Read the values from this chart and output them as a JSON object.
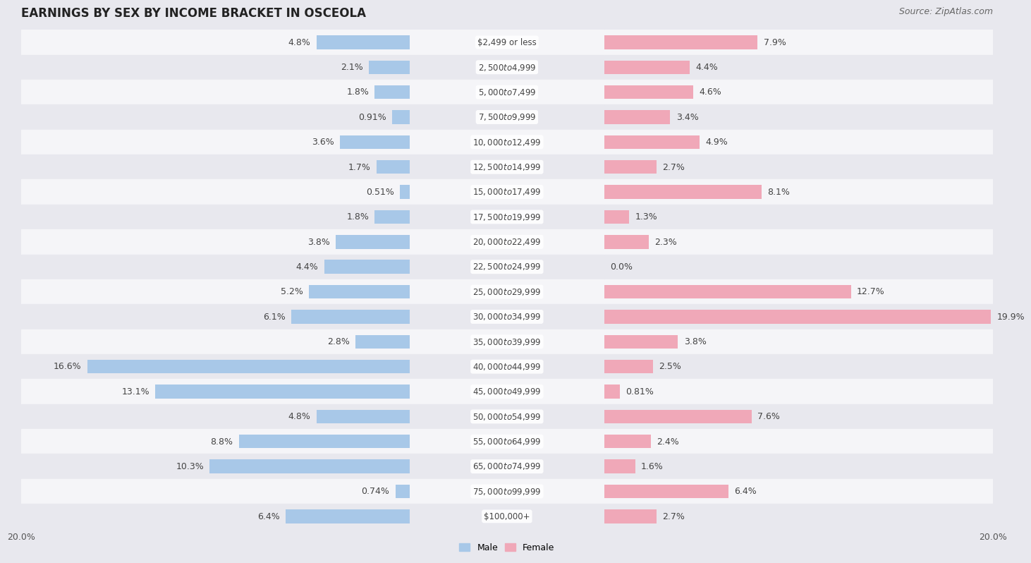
{
  "title": "EARNINGS BY SEX BY INCOME BRACKET IN OSCEOLA",
  "source": "Source: ZipAtlas.com",
  "categories": [
    "$2,499 or less",
    "$2,500 to $4,999",
    "$5,000 to $7,499",
    "$7,500 to $9,999",
    "$10,000 to $12,499",
    "$12,500 to $14,999",
    "$15,000 to $17,499",
    "$17,500 to $19,999",
    "$20,000 to $22,499",
    "$22,500 to $24,999",
    "$25,000 to $29,999",
    "$30,000 to $34,999",
    "$35,000 to $39,999",
    "$40,000 to $44,999",
    "$45,000 to $49,999",
    "$50,000 to $54,999",
    "$55,000 to $64,999",
    "$65,000 to $74,999",
    "$75,000 to $99,999",
    "$100,000+"
  ],
  "male_values": [
    4.8,
    2.1,
    1.8,
    0.91,
    3.6,
    1.7,
    0.51,
    1.8,
    3.8,
    4.4,
    5.2,
    6.1,
    2.8,
    16.6,
    13.1,
    4.8,
    8.8,
    10.3,
    0.74,
    6.4
  ],
  "female_values": [
    7.9,
    4.4,
    4.6,
    3.4,
    4.9,
    2.7,
    8.1,
    1.3,
    2.3,
    0.0,
    12.7,
    19.9,
    3.8,
    2.5,
    0.81,
    7.6,
    2.4,
    1.6,
    6.4,
    2.7
  ],
  "male_color": "#a8c8e8",
  "female_color": "#f0a8b8",
  "background_color": "#e8e8ee",
  "row_color_even": "#f5f5f8",
  "row_color_odd": "#e8e8ee",
  "xlim": 20.0,
  "bar_height": 0.55,
  "label_fontsize": 9,
  "value_fontsize": 9,
  "title_fontsize": 12,
  "source_fontsize": 9
}
